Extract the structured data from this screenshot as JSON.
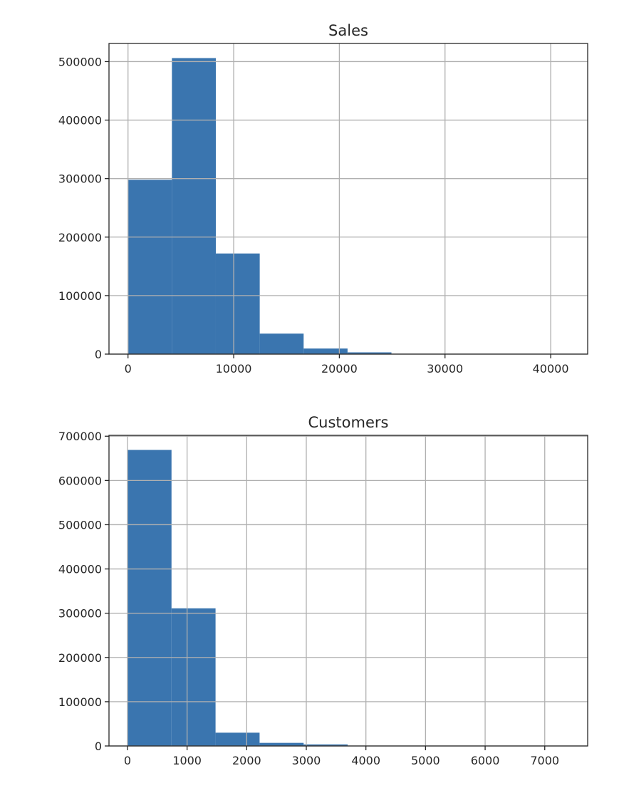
{
  "chart_data": [
    {
      "type": "bar",
      "title": "Sales",
      "xlabel": "",
      "ylabel": "",
      "grid": true,
      "bin_edges": [
        0,
        4155.1,
        8310.2,
        12465.3,
        16620.4,
        20775.5,
        24930.6,
        29085.7,
        33240.8,
        37395.9,
        41551
      ],
      "values": [
        298000,
        506000,
        172000,
        35000,
        9500,
        3000,
        600,
        150,
        50,
        20
      ],
      "xlim": [
        -1800,
        43500
      ],
      "ylim": [
        0,
        531000
      ],
      "xticks": [
        0,
        10000,
        20000,
        30000,
        40000
      ],
      "xtick_labels": [
        "0",
        "10000",
        "20000",
        "30000",
        "40000"
      ],
      "yticks": [
        0,
        100000,
        200000,
        300000,
        400000,
        500000
      ],
      "ytick_labels": [
        "0",
        "100000",
        "200000",
        "300000",
        "400000",
        "500000"
      ]
    },
    {
      "type": "bar",
      "title": "Customers",
      "xlabel": "",
      "ylabel": "",
      "grid": true,
      "bin_edges": [
        0,
        738.8,
        1477.6,
        2216.4,
        2955.2,
        3694,
        4432.8,
        5171.6,
        5910.4,
        6649.2,
        7388
      ],
      "values": [
        669000,
        311000,
        30000,
        7000,
        3500,
        800,
        300,
        100,
        50,
        20
      ],
      "xlim": [
        -310,
        7720
      ],
      "ylim": [
        0,
        702000
      ],
      "xticks": [
        0,
        1000,
        2000,
        3000,
        4000,
        5000,
        6000,
        7000
      ],
      "xtick_labels": [
        "0",
        "1000",
        "2000",
        "3000",
        "4000",
        "5000",
        "6000",
        "7000"
      ],
      "yticks": [
        0,
        100000,
        200000,
        300000,
        400000,
        500000,
        600000,
        700000
      ],
      "ytick_labels": [
        "0",
        "100000",
        "200000",
        "300000",
        "400000",
        "500000",
        "600000",
        "700000"
      ]
    }
  ]
}
